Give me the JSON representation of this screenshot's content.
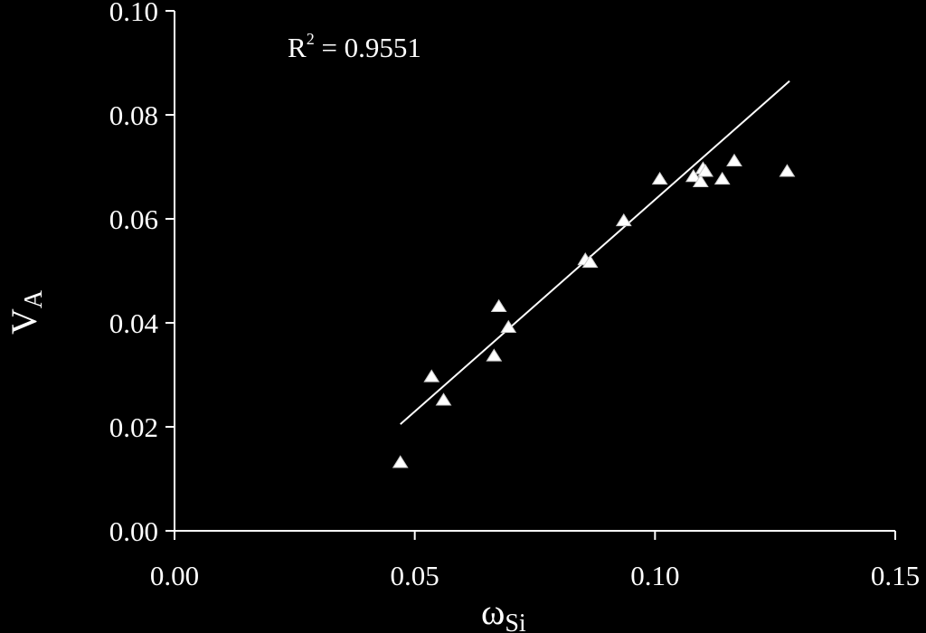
{
  "chart_data": {
    "type": "scatter",
    "title": "",
    "xlabel": "ω",
    "xlabel_sub": "Si",
    "ylabel": "V",
    "ylabel_sub": "A",
    "xlim": [
      0.0,
      0.15
    ],
    "ylim": [
      0.0,
      0.1
    ],
    "x_ticks": [
      "0.00",
      "0.05",
      "0.10",
      "0.15"
    ],
    "y_ticks": [
      "0.00",
      "0.02",
      "0.04",
      "0.06",
      "0.08",
      "0.10"
    ],
    "grid": false,
    "legend": "none",
    "annotation": {
      "text_base": "R",
      "text_sup": "2",
      "text_rest": " = 0.9551"
    },
    "trendline": {
      "x": [
        0.047,
        0.128
      ],
      "y": [
        0.0205,
        0.0865
      ]
    },
    "series": [
      {
        "marker": "triangle",
        "color": "#ffffff",
        "x": [
          0.047,
          0.0535,
          0.056,
          0.0665,
          0.0675,
          0.0695,
          0.0855,
          0.0865,
          0.0935,
          0.101,
          0.108,
          0.1095,
          0.11,
          0.1105,
          0.114,
          0.1165,
          0.1275
        ],
        "y": [
          0.013,
          0.0295,
          0.025,
          0.0335,
          0.043,
          0.039,
          0.052,
          0.0515,
          0.0595,
          0.0675,
          0.068,
          0.067,
          0.0695,
          0.069,
          0.0675,
          0.071,
          0.069
        ]
      }
    ]
  }
}
